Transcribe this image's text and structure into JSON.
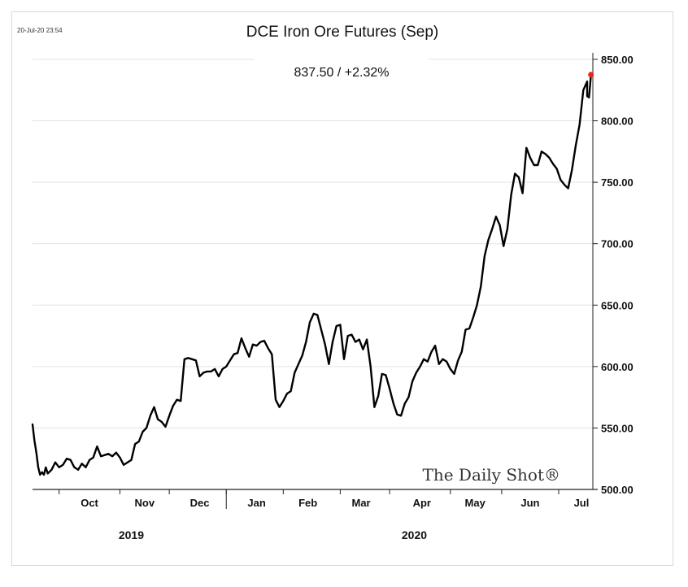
{
  "header": {
    "timestamp": "20-Jul-20 23:54",
    "title": "DCE Iron Ore Futures (Sep)"
  },
  "annotation": "837.50  /  +2.32%",
  "brand": "The Daily Shot®",
  "colors": {
    "line": "#000000",
    "last_point": "#e8251f",
    "grid": "#e3e3e3",
    "axis": "#222222"
  },
  "chart_data": {
    "type": "line",
    "title": "DCE Iron Ore Futures (Sep)",
    "xlabel": "",
    "ylabel": "",
    "ylim": [
      500,
      850
    ],
    "grid": true,
    "yticks": [
      500,
      550,
      600,
      650,
      700,
      750,
      800,
      850
    ],
    "ytick_labels": [
      "500.00",
      "550.00",
      "600.00",
      "650.00",
      "700.00",
      "750.00",
      "800.00",
      "850.00"
    ],
    "x_day_range": [
      0,
      295
    ],
    "month_labels": [
      {
        "label": "Oct",
        "day": 30
      },
      {
        "label": "Nov",
        "day": 59
      },
      {
        "label": "Dec",
        "day": 88
      },
      {
        "label": "Jan",
        "day": 118
      },
      {
        "label": "Feb",
        "day": 145
      },
      {
        "label": "Mar",
        "day": 173
      },
      {
        "label": "Apr",
        "day": 205
      },
      {
        "label": "May",
        "day": 233
      },
      {
        "label": "Jun",
        "day": 262
      },
      {
        "label": "Jul",
        "day": 289
      }
    ],
    "month_boundaries": [
      14,
      46,
      72,
      102,
      132,
      162,
      188,
      220,
      247,
      277
    ],
    "year_divider_day": 102,
    "year_labels": [
      {
        "label": "2019",
        "day": 52
      },
      {
        "label": "2020",
        "day": 201
      }
    ],
    "series": [
      {
        "name": "DCE Iron Ore Futures (Sep)",
        "x": [
          0,
          1,
          2,
          3,
          4,
          5,
          6,
          7,
          8,
          10,
          12,
          14,
          16,
          18,
          20,
          22,
          24,
          26,
          28,
          30,
          32,
          34,
          36,
          38,
          40,
          42,
          44,
          46,
          48,
          50,
          52,
          54,
          56,
          58,
          60,
          62,
          64,
          66,
          68,
          70,
          72,
          74,
          76,
          78,
          80,
          82,
          84,
          86,
          88,
          90,
          92,
          94,
          96,
          98,
          100,
          102,
          104,
          106,
          108,
          110,
          112,
          114,
          116,
          118,
          120,
          122,
          124,
          126,
          128,
          130,
          132,
          134,
          136,
          138,
          140,
          142,
          144,
          146,
          148,
          150,
          152,
          154,
          156,
          158,
          160,
          162,
          164,
          166,
          168,
          170,
          172,
          174,
          176,
          178,
          180,
          182,
          184,
          186,
          188,
          190,
          192,
          194,
          196,
          198,
          200,
          202,
          204,
          206,
          208,
          210,
          212,
          214,
          216,
          218,
          220,
          222,
          224,
          226,
          228,
          230,
          232,
          234,
          236,
          238,
          240,
          242,
          244,
          246,
          248,
          250,
          252,
          254,
          256,
          258,
          260,
          262,
          264,
          266,
          268,
          270,
          272,
          274,
          276,
          278,
          280,
          282,
          284,
          286,
          288,
          290,
          292
        ],
        "values": [
          553,
          540,
          530,
          518,
          512,
          514,
          512,
          518,
          513,
          516,
          522,
          518,
          520,
          525,
          524,
          518,
          516,
          521,
          518,
          524,
          526,
          535,
          527,
          528,
          529,
          527,
          530,
          526,
          520,
          522,
          524,
          537,
          539,
          547,
          550,
          560,
          567,
          557,
          555,
          551,
          560,
          568,
          573,
          572,
          606,
          607,
          606,
          605,
          592,
          595,
          596,
          596,
          598,
          592,
          598,
          600,
          605,
          610,
          611,
          623,
          615,
          608,
          618,
          617,
          620,
          621,
          615,
          610,
          573,
          567,
          572,
          578,
          580,
          595,
          602,
          609,
          620,
          636,
          643,
          642,
          630,
          618,
          602,
          620,
          633,
          634,
          606,
          625,
          626,
          620,
          622,
          614,
          622,
          600,
          567,
          576,
          594,
          593,
          582,
          570,
          561,
          560,
          570,
          575,
          588,
          595,
          600,
          606,
          604,
          612,
          617,
          602,
          606,
          604,
          598,
          594,
          605,
          612,
          630,
          631,
          640,
          650,
          665,
          690,
          703,
          712,
          722,
          715,
          698,
          712,
          740,
          757,
          754,
          741,
          778,
          770,
          764,
          764,
          775,
          773,
          770,
          765,
          761,
          752,
          748,
          745,
          760,
          780,
          797,
          825,
          832
        ]
      }
    ],
    "last_point": {
      "x": 294,
      "value": 837.5,
      "label": "837.50",
      "change": "+2.32%"
    }
  }
}
